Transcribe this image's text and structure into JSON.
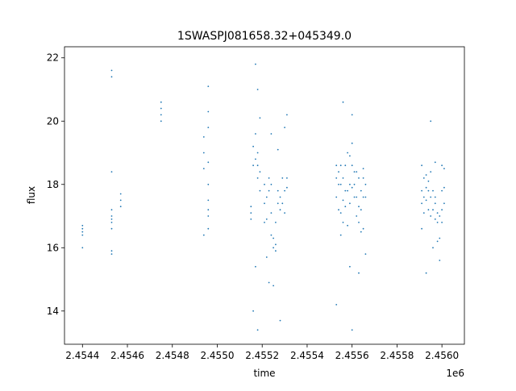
{
  "chart_data": {
    "type": "scatter",
    "title": "1SWASPJ081658.32+045349.0",
    "xlabel": "time",
    "ylabel": "flux",
    "x_offset_label": "1e6",
    "xlim": [
      2.45432,
      2.4561
    ],
    "ylim": [
      12.95,
      22.35
    ],
    "x_ticks": [
      2.4544,
      2.4546,
      2.4548,
      2.455,
      2.4552,
      2.4554,
      2.4556,
      2.4558,
      2.456
    ],
    "x_tick_labels": [
      "2.4544",
      "2.4546",
      "2.4548",
      "2.4550",
      "2.4552",
      "2.4554",
      "2.4556",
      "2.4558",
      "2.4560"
    ],
    "y_ticks": [
      14,
      16,
      18,
      20,
      22
    ],
    "y_tick_labels": [
      "14",
      "16",
      "18",
      "20",
      "22"
    ],
    "grid": false,
    "legend": "none",
    "marker_color": "#1f77b4",
    "series": [
      {
        "x": [
          2.4544,
          2.4544,
          2.4544,
          2.4544,
          2.4544,
          2.45453,
          2.45453,
          2.45453,
          2.45453,
          2.45453,
          2.45453,
          2.45453,
          2.45453,
          2.45453,
          2.45453,
          2.45457,
          2.45457,
          2.45457,
          2.45475,
          2.45475,
          2.45475,
          2.45475,
          2.45494,
          2.45494,
          2.45494,
          2.45494,
          2.45496,
          2.45496,
          2.45496,
          2.45496,
          2.45496,
          2.45496,
          2.45496,
          2.45496,
          2.45496,
          2.45515,
          2.45515,
          2.45515,
          2.45516,
          2.45516,
          2.45516,
          2.45517,
          2.45517,
          2.45517,
          2.45517,
          2.45518,
          2.45518,
          2.45518,
          2.45518,
          2.45518,
          2.45519,
          2.45519,
          2.45519,
          2.45521,
          2.45521,
          2.45521,
          2.45522,
          2.45522,
          2.45522,
          2.45523,
          2.45523,
          2.45523,
          2.45524,
          2.45524,
          2.45524,
          2.45524,
          2.45525,
          2.45525,
          2.45525,
          2.45526,
          2.45526,
          2.45526,
          2.45527,
          2.45527,
          2.45527,
          2.45528,
          2.45528,
          2.45528,
          2.45529,
          2.45529,
          2.4553,
          2.4553,
          2.4553,
          2.45531,
          2.45531,
          2.45531,
          2.45553,
          2.45553,
          2.45553,
          2.45553,
          2.45554,
          2.45554,
          2.45554,
          2.45555,
          2.45555,
          2.45555,
          2.45555,
          2.45556,
          2.45556,
          2.45556,
          2.45556,
          2.45557,
          2.45557,
          2.45557,
          2.45558,
          2.45558,
          2.45558,
          2.45559,
          2.45559,
          2.45559,
          2.45559,
          2.4556,
          2.4556,
          2.4556,
          2.4556,
          2.4556,
          2.45561,
          2.45561,
          2.45561,
          2.45562,
          2.45562,
          2.45562,
          2.45563,
          2.45563,
          2.45563,
          2.45563,
          2.45564,
          2.45564,
          2.45564,
          2.45565,
          2.45565,
          2.45565,
          2.45565,
          2.45566,
          2.45566,
          2.45566,
          2.45591,
          2.45591,
          2.45591,
          2.45591,
          2.45592,
          2.45592,
          2.45592,
          2.45593,
          2.45593,
          2.45593,
          2.45593,
          2.45594,
          2.45594,
          2.45594,
          2.45595,
          2.45595,
          2.45595,
          2.45595,
          2.45596,
          2.45596,
          2.45596,
          2.45597,
          2.45597,
          2.45597,
          2.45597,
          2.45598,
          2.45598,
          2.45598,
          2.45599,
          2.45599,
          2.45599,
          2.456,
          2.456,
          2.456,
          2.456,
          2.45601,
          2.45601,
          2.45601
        ],
        "y": [
          16.6,
          16.5,
          16.4,
          16.7,
          16.0,
          16.8,
          17.0,
          16.9,
          17.2,
          16.6,
          18.4,
          15.9,
          15.8,
          21.4,
          21.6,
          17.5,
          17.3,
          17.7,
          20.6,
          20.4,
          20.2,
          20.0,
          19.5,
          19.0,
          18.5,
          16.4,
          17.0,
          18.0,
          20.3,
          16.6,
          17.5,
          21.1,
          19.8,
          17.2,
          18.7,
          17.1,
          16.9,
          17.3,
          18.6,
          19.2,
          14.0,
          19.6,
          18.8,
          21.8,
          15.4,
          18.6,
          18.2,
          19.0,
          13.4,
          21.0,
          18.4,
          17.8,
          20.1,
          18.0,
          17.4,
          16.8,
          17.6,
          16.9,
          15.7,
          17.8,
          18.2,
          14.9,
          18.0,
          17.1,
          19.6,
          16.4,
          16.3,
          16.0,
          14.8,
          16.8,
          16.1,
          15.9,
          17.8,
          17.4,
          19.1,
          17.6,
          17.2,
          13.7,
          17.4,
          18.2,
          17.1,
          17.8,
          19.8,
          18.2,
          17.9,
          20.2,
          18.2,
          17.6,
          18.6,
          14.2,
          18.4,
          18.0,
          17.2,
          18.0,
          17.1,
          18.6,
          16.4,
          17.5,
          18.2,
          16.8,
          20.6,
          17.8,
          18.6,
          17.3,
          17.8,
          16.7,
          19.0,
          18.0,
          17.4,
          18.9,
          15.4,
          19.3,
          18.6,
          17.9,
          20.2,
          13.4,
          18.4,
          18.0,
          17.6,
          17.6,
          17.0,
          18.4,
          17.3,
          16.8,
          18.2,
          15.2,
          17.2,
          17.8,
          16.5,
          18.2,
          17.6,
          18.5,
          16.6,
          17.6,
          18.0,
          15.8,
          17.4,
          17.8,
          18.6,
          16.6,
          17.6,
          18.2,
          17.1,
          17.9,
          17.5,
          18.3,
          15.2,
          17.8,
          18.1,
          17.2,
          17.6,
          18.4,
          17.0,
          20.0,
          17.8,
          17.2,
          16.0,
          17.6,
          16.9,
          17.4,
          18.7,
          16.8,
          16.2,
          17.1,
          16.3,
          17.0,
          15.6,
          17.2,
          17.8,
          18.6,
          16.8,
          17.4,
          17.9,
          18.5
        ]
      }
    ]
  }
}
